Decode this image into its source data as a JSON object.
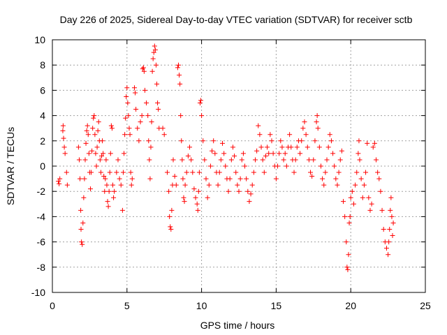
{
  "chart_data": {
    "type": "scatter",
    "title": "Day 226 of 2025, Sidereal Day-to-day VTEC variation (SDTVAR) for receiver sctb",
    "xlabel": "GPS time / hours",
    "ylabel": "SDTVAR / TECUs",
    "xlim": [
      0,
      25
    ],
    "ylim": [
      -10,
      10
    ],
    "x_ticks": [
      0,
      5,
      10,
      15,
      20,
      25
    ],
    "y_ticks": [
      -10,
      -8,
      -6,
      -4,
      -2,
      0,
      2,
      4,
      6,
      8,
      10
    ],
    "grid": true,
    "marker": "+",
    "color": "#ff0000",
    "series": [
      {
        "name": "sctb",
        "points": [
          [
            0.4,
            -1.2
          ],
          [
            0.45,
            -1.4
          ],
          [
            0.5,
            -1.0
          ],
          [
            0.7,
            2.8
          ],
          [
            0.72,
            3.2
          ],
          [
            0.75,
            2.2
          ],
          [
            0.8,
            1.5
          ],
          [
            0.85,
            1.0
          ],
          [
            0.95,
            -0.5
          ],
          [
            1.0,
            -1.5
          ],
          [
            1.75,
            1.5
          ],
          [
            1.8,
            0.5
          ],
          [
            1.85,
            -1.0
          ],
          [
            1.9,
            -3.5
          ],
          [
            1.92,
            -5.0
          ],
          [
            1.95,
            -6.0
          ],
          [
            2.0,
            -6.2
          ],
          [
            2.05,
            -4.5
          ],
          [
            2.1,
            -2.5
          ],
          [
            2.15,
            -1.0
          ],
          [
            2.2,
            0.5
          ],
          [
            2.25,
            1.8
          ],
          [
            2.3,
            2.8
          ],
          [
            2.35,
            3.2
          ],
          [
            2.4,
            2.5
          ],
          [
            2.45,
            1.0
          ],
          [
            2.5,
            -0.5
          ],
          [
            2.55,
            -1.8
          ],
          [
            2.6,
            -0.5
          ],
          [
            2.65,
            1.2
          ],
          [
            2.7,
            3.0
          ],
          [
            2.75,
            3.8
          ],
          [
            2.8,
            4.0
          ],
          [
            2.85,
            2.5
          ],
          [
            2.9,
            1.0
          ],
          [
            2.95,
            0.0
          ],
          [
            3.0,
            1.5
          ],
          [
            3.05,
            2.8
          ],
          [
            3.1,
            3.5
          ],
          [
            3.15,
            2.0
          ],
          [
            3.2,
            0.5
          ],
          [
            3.25,
            -0.5
          ],
          [
            3.3,
            0.8
          ],
          [
            3.35,
            2.0
          ],
          [
            3.4,
            1.0
          ],
          [
            3.45,
            -0.8
          ],
          [
            3.5,
            -2.0
          ],
          [
            3.55,
            -1.0
          ],
          [
            3.6,
            0.5
          ],
          [
            3.65,
            -1.5
          ],
          [
            3.7,
            -2.8
          ],
          [
            3.75,
            -3.2
          ],
          [
            3.8,
            -2.0
          ],
          [
            3.85,
            -0.5
          ],
          [
            3.9,
            1.0
          ],
          [
            3.95,
            3.2
          ],
          [
            4.0,
            3.0
          ],
          [
            4.05,
            -1.5
          ],
          [
            4.1,
            -2.5
          ],
          [
            4.15,
            -2.0
          ],
          [
            4.3,
            -0.5
          ],
          [
            4.4,
            0.5
          ],
          [
            4.5,
            -1.0
          ],
          [
            4.6,
            -1.5
          ],
          [
            4.7,
            -3.5
          ],
          [
            4.75,
            -0.5
          ],
          [
            4.8,
            1.0
          ],
          [
            4.85,
            2.5
          ],
          [
            4.9,
            3.8
          ],
          [
            4.95,
            5.5
          ],
          [
            5.0,
            6.2
          ],
          [
            5.05,
            5.0
          ],
          [
            5.1,
            4.0
          ],
          [
            5.15,
            3.0
          ],
          [
            5.2,
            2.5
          ],
          [
            5.25,
            -0.5
          ],
          [
            5.3,
            -1.5
          ],
          [
            5.35,
            -1.0
          ],
          [
            5.5,
            6.2
          ],
          [
            5.55,
            5.8
          ],
          [
            5.6,
            4.5
          ],
          [
            5.7,
            3.0
          ],
          [
            5.8,
            2.0
          ],
          [
            5.9,
            3.5
          ],
          [
            6.0,
            4.0
          ],
          [
            6.05,
            7.7
          ],
          [
            6.1,
            7.8
          ],
          [
            6.15,
            7.5
          ],
          [
            6.2,
            6.0
          ],
          [
            6.3,
            5.0
          ],
          [
            6.4,
            4.0
          ],
          [
            6.45,
            2.0
          ],
          [
            6.5,
            0.5
          ],
          [
            6.55,
            -1.0
          ],
          [
            6.6,
            1.5
          ],
          [
            6.65,
            3.5
          ],
          [
            6.7,
            7.5
          ],
          [
            6.75,
            8.5
          ],
          [
            6.8,
            9.0
          ],
          [
            6.85,
            9.5
          ],
          [
            6.9,
            9.2
          ],
          [
            6.95,
            8.0
          ],
          [
            7.0,
            6.5
          ],
          [
            7.05,
            5.0
          ],
          [
            7.1,
            4.5
          ],
          [
            7.15,
            3.0
          ],
          [
            7.4,
            3.0
          ],
          [
            7.5,
            2.5
          ],
          [
            7.7,
            -0.5
          ],
          [
            7.8,
            -2.0
          ],
          [
            7.85,
            -4.0
          ],
          [
            7.9,
            -4.8
          ],
          [
            7.95,
            -5.0
          ],
          [
            8.0,
            -3.5
          ],
          [
            8.05,
            -1.5
          ],
          [
            8.1,
            0.5
          ],
          [
            8.2,
            -0.8
          ],
          [
            8.3,
            -1.5
          ],
          [
            8.4,
            7.8
          ],
          [
            8.45,
            8.0
          ],
          [
            8.5,
            7.2
          ],
          [
            8.55,
            6.5
          ],
          [
            8.6,
            4.0
          ],
          [
            8.65,
            2.0
          ],
          [
            8.7,
            0.5
          ],
          [
            8.75,
            -1.0
          ],
          [
            8.8,
            -2.5
          ],
          [
            8.85,
            -2.8
          ],
          [
            8.9,
            -1.5
          ],
          [
            9.0,
            -0.5
          ],
          [
            9.1,
            0.8
          ],
          [
            9.2,
            1.5
          ],
          [
            9.3,
            0.5
          ],
          [
            9.4,
            -0.5
          ],
          [
            9.5,
            -1.8
          ],
          [
            9.6,
            -2.5
          ],
          [
            9.7,
            -3.0
          ],
          [
            9.75,
            -3.5
          ],
          [
            9.8,
            -2.0
          ],
          [
            9.85,
            -0.5
          ],
          [
            9.9,
            5.0
          ],
          [
            9.95,
            5.2
          ],
          [
            10.0,
            4.0
          ],
          [
            10.1,
            2.0
          ],
          [
            10.2,
            0.5
          ],
          [
            10.3,
            -1.0
          ],
          [
            10.4,
            -2.5
          ],
          [
            10.5,
            -1.5
          ],
          [
            10.6,
            0.0
          ],
          [
            10.7,
            1.2
          ],
          [
            10.8,
            2.0
          ],
          [
            10.9,
            1.0
          ],
          [
            11.0,
            -0.5
          ],
          [
            11.1,
            -1.5
          ],
          [
            11.2,
            -0.5
          ],
          [
            11.3,
            0.5
          ],
          [
            11.4,
            1.8
          ],
          [
            11.5,
            1.0
          ],
          [
            11.6,
            0.0
          ],
          [
            11.7,
            -1.0
          ],
          [
            11.8,
            -2.0
          ],
          [
            11.9,
            -1.0
          ],
          [
            12.0,
            0.5
          ],
          [
            12.1,
            1.5
          ],
          [
            12.2,
            0.8
          ],
          [
            12.3,
            -0.5
          ],
          [
            12.4,
            -1.5
          ],
          [
            12.5,
            -2.0
          ],
          [
            12.6,
            -1.0
          ],
          [
            12.7,
            0.5
          ],
          [
            12.8,
            1.0
          ],
          [
            12.9,
            0.0
          ],
          [
            13.0,
            -1.0
          ],
          [
            13.1,
            -2.0
          ],
          [
            13.2,
            -2.8
          ],
          [
            13.3,
            -2.2
          ],
          [
            13.4,
            -1.5
          ],
          [
            13.5,
            -0.5
          ],
          [
            13.6,
            0.5
          ],
          [
            13.7,
            1.2
          ],
          [
            13.8,
            3.2
          ],
          [
            13.9,
            2.5
          ],
          [
            14.0,
            1.5
          ],
          [
            14.1,
            0.5
          ],
          [
            14.2,
            -0.5
          ],
          [
            14.3,
            0.8
          ],
          [
            14.4,
            1.5
          ],
          [
            14.5,
            1.0
          ],
          [
            14.6,
            2.5
          ],
          [
            14.7,
            2.0
          ],
          [
            14.8,
            1.0
          ],
          [
            14.9,
            0.0
          ],
          [
            15.0,
            -1.0
          ],
          [
            15.1,
            0.0
          ],
          [
            15.2,
            1.0
          ],
          [
            15.3,
            2.0
          ],
          [
            15.4,
            1.5
          ],
          [
            15.5,
            0.5
          ],
          [
            15.6,
            1.0
          ],
          [
            15.7,
            0.0
          ],
          [
            15.8,
            1.5
          ],
          [
            15.9,
            2.5
          ],
          [
            16.0,
            1.5
          ],
          [
            16.1,
            0.5
          ],
          [
            16.2,
            -0.5
          ],
          [
            16.3,
            0.5
          ],
          [
            16.4,
            1.5
          ],
          [
            16.5,
            2.0
          ],
          [
            16.6,
            1.0
          ],
          [
            16.7,
            2.0
          ],
          [
            16.8,
            3.0
          ],
          [
            16.9,
            3.5
          ],
          [
            17.0,
            2.5
          ],
          [
            17.1,
            1.5
          ],
          [
            17.2,
            0.5
          ],
          [
            17.3,
            -0.5
          ],
          [
            17.4,
            -0.8
          ],
          [
            17.5,
            0.5
          ],
          [
            17.6,
            2.0
          ],
          [
            17.7,
            3.5
          ],
          [
            17.75,
            4.0
          ],
          [
            17.8,
            3.0
          ],
          [
            17.9,
            1.5
          ],
          [
            18.0,
            0.0
          ],
          [
            18.1,
            -1.0
          ],
          [
            18.2,
            -1.5
          ],
          [
            18.3,
            -0.5
          ],
          [
            18.4,
            0.5
          ],
          [
            18.5,
            1.5
          ],
          [
            18.6,
            2.5
          ],
          [
            18.7,
            2.0
          ],
          [
            18.8,
            1.0
          ],
          [
            18.9,
            0.0
          ],
          [
            19.0,
            -1.0
          ],
          [
            19.1,
            -1.5
          ],
          [
            19.2,
            -0.5
          ],
          [
            19.3,
            0.5
          ],
          [
            19.4,
            1.2
          ],
          [
            19.5,
            -2.8
          ],
          [
            19.6,
            -4.0
          ],
          [
            19.7,
            -6.0
          ],
          [
            19.75,
            -8.0
          ],
          [
            19.8,
            -8.2
          ],
          [
            19.85,
            -7.0
          ],
          [
            19.9,
            -4.5
          ],
          [
            19.95,
            -4.0
          ],
          [
            20.0,
            -2.5
          ],
          [
            20.1,
            -2.0
          ],
          [
            20.2,
            -3.0
          ],
          [
            20.3,
            -1.5
          ],
          [
            20.4,
            -0.5
          ],
          [
            20.5,
            1.0
          ],
          [
            20.55,
            2.0
          ],
          [
            20.6,
            0.5
          ],
          [
            20.7,
            -1.0
          ],
          [
            20.8,
            -2.5
          ],
          [
            20.9,
            -1.5
          ],
          [
            21.0,
            -0.5
          ],
          [
            21.1,
            1.8
          ],
          [
            21.2,
            -2.5
          ],
          [
            21.3,
            -3.5
          ],
          [
            21.4,
            -3.0
          ],
          [
            21.5,
            1.5
          ],
          [
            21.6,
            1.8
          ],
          [
            21.7,
            0.5
          ],
          [
            21.8,
            -0.5
          ],
          [
            21.9,
            -1.0
          ],
          [
            22.0,
            -2.0
          ],
          [
            22.1,
            -3.5
          ],
          [
            22.2,
            -5.0
          ],
          [
            22.3,
            -6.0
          ],
          [
            22.4,
            -6.5
          ],
          [
            22.5,
            -7.0
          ],
          [
            22.55,
            -6.0
          ],
          [
            22.6,
            -5.0
          ],
          [
            22.65,
            -3.5
          ],
          [
            22.7,
            -2.5
          ],
          [
            22.75,
            -4.0
          ],
          [
            22.8,
            -5.5
          ],
          [
            22.85,
            -4.5
          ]
        ]
      }
    ]
  }
}
